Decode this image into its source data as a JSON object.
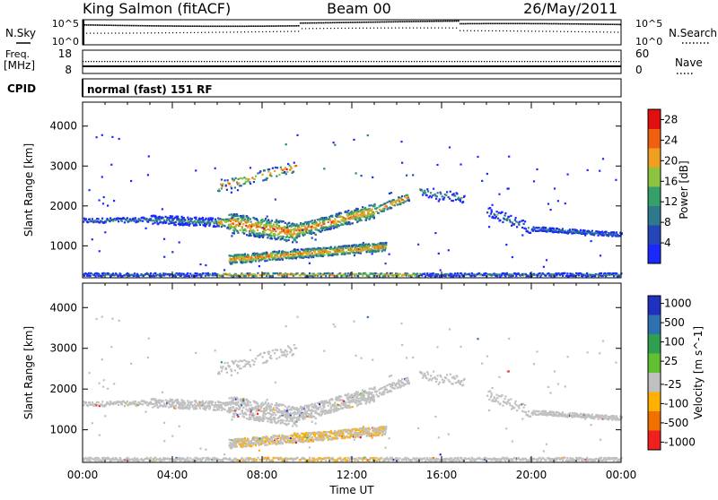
{
  "header": {
    "station": "King Salmon (fitACF)",
    "beam": "Beam 00",
    "date": "26/May/2011"
  },
  "strip_labels": {
    "nsky": "N.Sky",
    "nsearch": "N.Search",
    "freq": "Freq.",
    "freq_unit": "[MHz]",
    "nave": "Nave",
    "cpid": "CPID",
    "cpid_value": "normal (fast) 151 RF",
    "noise_ticks": [
      "10^5",
      "10^0"
    ],
    "freq_ticks": [
      "18",
      "8"
    ],
    "nave_ticks": [
      "60",
      "0"
    ]
  },
  "chart_data": [
    {
      "type": "heatmap",
      "panel": "power",
      "title": "",
      "xlabel": "",
      "ylabel": "Slant Range [km]",
      "xlim": [
        0,
        24
      ],
      "ylim": [
        200,
        4600
      ],
      "yticks": [
        1000,
        2000,
        3000,
        4000
      ],
      "colorbar": {
        "label": "Power [dB]",
        "ticks": [
          4,
          8,
          12,
          16,
          20,
          24,
          28
        ],
        "range": [
          0,
          30
        ],
        "colors": [
          "#1a2aff",
          "#2446b8",
          "#2e7a8c",
          "#35a06a",
          "#8cc440",
          "#f0a020",
          "#f06010",
          "#e01010"
        ]
      },
      "regions": [
        {
          "name": "main band",
          "t": [
            0.0,
            24.0
          ],
          "range_center": [
            1650,
            1650,
            1450,
            1300,
            1700,
            2100,
            2350
          ],
          "level": 8
        },
        {
          "name": "lower band",
          "t": [
            6.5,
            13.5
          ],
          "range_center": [
            650,
            1000
          ],
          "level": 14
        },
        {
          "name": "upper scatter",
          "t": [
            6.0,
            9.5
          ],
          "range_center": [
            2500,
            3000
          ],
          "level": 6
        },
        {
          "name": "evening band",
          "t": [
            19.0,
            24.0
          ],
          "range_center": [
            1500,
            1300
          ],
          "level": 6
        }
      ]
    },
    {
      "type": "heatmap",
      "panel": "velocity",
      "title": "",
      "xlabel": "Time UT",
      "ylabel": "Slant Range [km]",
      "xlim": [
        0,
        24
      ],
      "ylim": [
        200,
        4600
      ],
      "xticks": [
        "00:00",
        "04:00",
        "08:00",
        "12:00",
        "16:00",
        "20:00",
        "00:00"
      ],
      "yticks": [
        1000,
        2000,
        3000,
        4000
      ],
      "colorbar": {
        "label": "Velocity [m s^-1]",
        "ticks": [
          1000,
          500,
          100,
          25,
          -25,
          -100,
          -500,
          -1000
        ],
        "colors": [
          "#2030c0",
          "#2e70b0",
          "#30a050",
          "#60c030",
          "#c0c0c0",
          "#ffb000",
          "#f07000",
          "#f02020"
        ]
      },
      "regions": [
        {
          "name": "ground scatter band",
          "t": [
            0.0,
            24.0
          ],
          "velocity": 0
        },
        {
          "name": "lower band",
          "t": [
            6.5,
            13.5
          ],
          "velocity": -100
        }
      ]
    }
  ]
}
